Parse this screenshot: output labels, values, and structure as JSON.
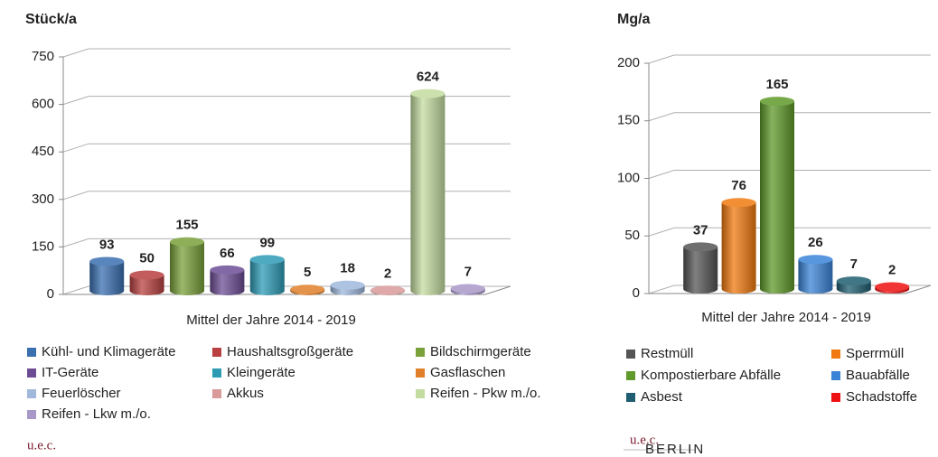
{
  "chart_data": [
    {
      "type": "bar",
      "title": "Stück/a",
      "xlabel": "Mittel der Jahre 2014 - 2019",
      "categories": [
        "Kühl- und Klimageräte",
        "Haushaltsgroßgeräte",
        "Bildschirmgeräte",
        "IT-Geräte",
        "Kleingeräte",
        "Gasflaschen",
        "Feuerlöscher",
        "Akkus",
        "Reifen - Pkw m./o.",
        "Reifen - Lkw m./o."
      ],
      "values": [
        93,
        50,
        155,
        66,
        99,
        5,
        18,
        2,
        624,
        7
      ],
      "colors": [
        "#3a6fb0",
        "#b84040",
        "#7aa03a",
        "#6c4d94",
        "#2e9bb5",
        "#e0802a",
        "#9fb8dc",
        "#d99a9a",
        "#c3dca0",
        "#a898c8"
      ],
      "ylim": [
        0,
        750
      ],
      "yticks": [
        0,
        150,
        300,
        450,
        600,
        750
      ],
      "grid": true
    },
    {
      "type": "bar",
      "title": "Mg/a",
      "xlabel": "Mittel der Jahre 2014 - 2019",
      "categories": [
        "Restmüll",
        "Sperrmüll",
        "Kompostierbare Abfälle",
        "Bauabfälle",
        "Asbest",
        "Schadstoffe"
      ],
      "values": [
        37,
        76,
        165,
        26,
        7,
        2
      ],
      "colors": [
        "#555555",
        "#f07a10",
        "#5f9a2a",
        "#3a84d8",
        "#1f5e70",
        "#ee1111"
      ],
      "ylim": [
        0,
        200
      ],
      "yticks": [
        0,
        50,
        100,
        150,
        200
      ],
      "grid": true
    }
  ],
  "logos": [
    "u.e.c.",
    "u.e.c."
  ],
  "logo_subtext": "BERLIN"
}
